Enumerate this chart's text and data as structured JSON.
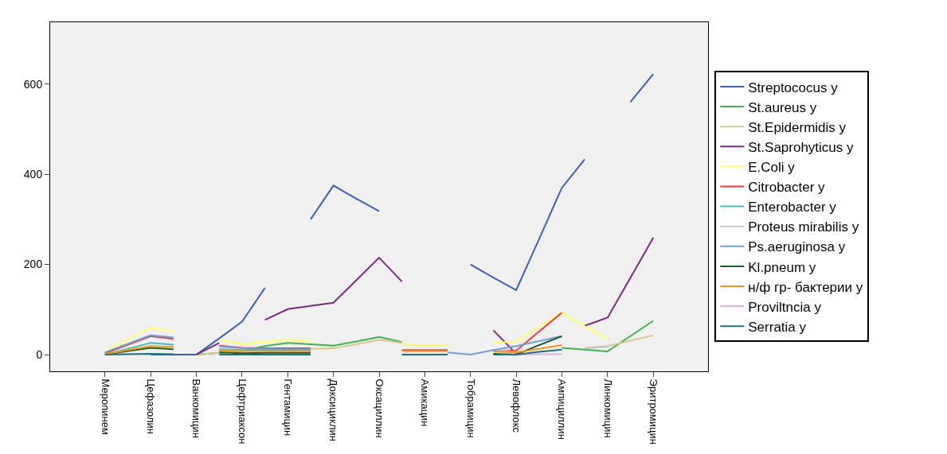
{
  "chart_data": {
    "type": "line",
    "ylim": [
      -37,
      737
    ],
    "categories": [
      "Меропинем",
      null,
      "Цефазолин",
      null,
      "Ванкомицин",
      null,
      "Цефтриаксон",
      null,
      "Гентамицин",
      null,
      "Доксициклин",
      null,
      "Оксациллин",
      null,
      "Амикацин",
      null,
      "Тобрамицин",
      null,
      "Левофлокс",
      null,
      "Ампициллин",
      null,
      "Линкомицин",
      null,
      "Эритромицин"
    ],
    "yticks": [
      0,
      200,
      400,
      600
    ],
    "grid": false,
    "legend": "right",
    "marker": "none",
    "line_style": "solid",
    "series": [
      {
        "name": "Streptococus y",
        "color": "#3f5fb5",
        "values": [
          null,
          null,
          0,
          0,
          0,
          36,
          73,
          148,
          null,
          300,
          375,
          346,
          318,
          null,
          null,
          null,
          200,
          171,
          143,
          256,
          370,
          433,
          null,
          560,
          622
        ]
      },
      {
        "name": "St.aureus y",
        "color": "#3cb44b",
        "values": [
          null,
          null,
          null,
          null,
          0,
          4,
          8,
          19,
          26,
          23,
          20,
          29,
          39,
          28,
          null,
          null,
          null,
          null,
          null,
          null,
          15,
          11,
          7,
          41,
          75
        ]
      },
      {
        "name": "St.Epidermidis y",
        "color": "#d4c98a",
        "values": [
          null,
          null,
          null,
          null,
          0,
          4,
          8,
          12,
          12,
          13,
          14,
          23,
          33,
          26,
          null,
          null,
          null,
          10,
          8,
          null,
          null,
          15,
          19,
          31,
          43
        ]
      },
      {
        "name": "St.Saprohyticus y",
        "color": "#7b2a82",
        "values": [
          null,
          null,
          null,
          null,
          0,
          26,
          null,
          77,
          101,
          108,
          115,
          165,
          215,
          162,
          null,
          null,
          null,
          54,
          2,
          null,
          null,
          64,
          82,
          170,
          259
        ]
      },
      {
        "name": "E.Coli y",
        "color": "#ffff66",
        "values": [
          7,
          33,
          60,
          51,
          null,
          33,
          24,
          28,
          33,
          29,
          null,
          null,
          null,
          24,
          19,
          22,
          null,
          26,
          29,
          61,
          93,
          63,
          34,
          null,
          null
        ]
      },
      {
        "name": "Citrobacter y",
        "color": "#f03c3c",
        "values": [
          3,
          22,
          41,
          35,
          null,
          20,
          15,
          14,
          14,
          14,
          null,
          null,
          null,
          10,
          10,
          10,
          null,
          9,
          9,
          51,
          93,
          null,
          null,
          null,
          null
        ]
      },
      {
        "name": "Enterobacter y",
        "color": "#3fbfbf",
        "values": [
          1,
          13,
          26,
          22,
          null,
          12,
          10,
          10,
          10,
          10,
          null,
          null,
          null,
          null,
          null,
          null,
          null,
          null,
          null,
          null,
          null,
          null,
          null,
          null,
          null
        ]
      },
      {
        "name": "Proteus mirabilis y",
        "color": "#c8c8c8",
        "values": [
          null,
          null,
          null,
          null,
          null,
          null,
          null,
          null,
          null,
          null,
          null,
          null,
          null,
          null,
          null,
          null,
          null,
          10,
          6,
          null,
          null,
          14,
          17,
          null,
          null
        ]
      },
      {
        "name": "Ps.aeruginosa y",
        "color": "#6fa0d8",
        "values": [
          5,
          24,
          43,
          38,
          null,
          18,
          14,
          13,
          12,
          12,
          null,
          null,
          null,
          null,
          null,
          5,
          0,
          10,
          19,
          30,
          41,
          null,
          null,
          null,
          null
        ]
      },
      {
        "name": "Kl.pneum y",
        "color": "#1a5c2e",
        "values": [
          0,
          8,
          15,
          12,
          null,
          5,
          3,
          4,
          4,
          4,
          null,
          null,
          null,
          null,
          null,
          null,
          null,
          2,
          0,
          21,
          41,
          null,
          null,
          null,
          null
        ]
      },
      {
        "name": "н/ф гр- бактерии y",
        "color": "#f7941d",
        "values": [
          1,
          10,
          19,
          17,
          null,
          9,
          8,
          8,
          8,
          8,
          null,
          null,
          null,
          8,
          8,
          8,
          null,
          7,
          5,
          13,
          21,
          null,
          null,
          null,
          null
        ]
      },
      {
        "name": "Proviltncia y",
        "color": "#d9b3e8",
        "values": [
          null,
          null,
          null,
          null,
          null,
          null,
          null,
          null,
          null,
          null,
          null,
          null,
          null,
          null,
          null,
          null,
          null,
          null,
          0,
          1,
          1,
          null,
          null,
          null,
          null
        ]
      },
      {
        "name": "Serratia y",
        "color": "#1f6f7a",
        "values": [
          0,
          1,
          2,
          1,
          null,
          0,
          0,
          0,
          0,
          0,
          null,
          null,
          null,
          0,
          0,
          0,
          null,
          0,
          0,
          6,
          11,
          null,
          null,
          null,
          null
        ]
      }
    ]
  }
}
